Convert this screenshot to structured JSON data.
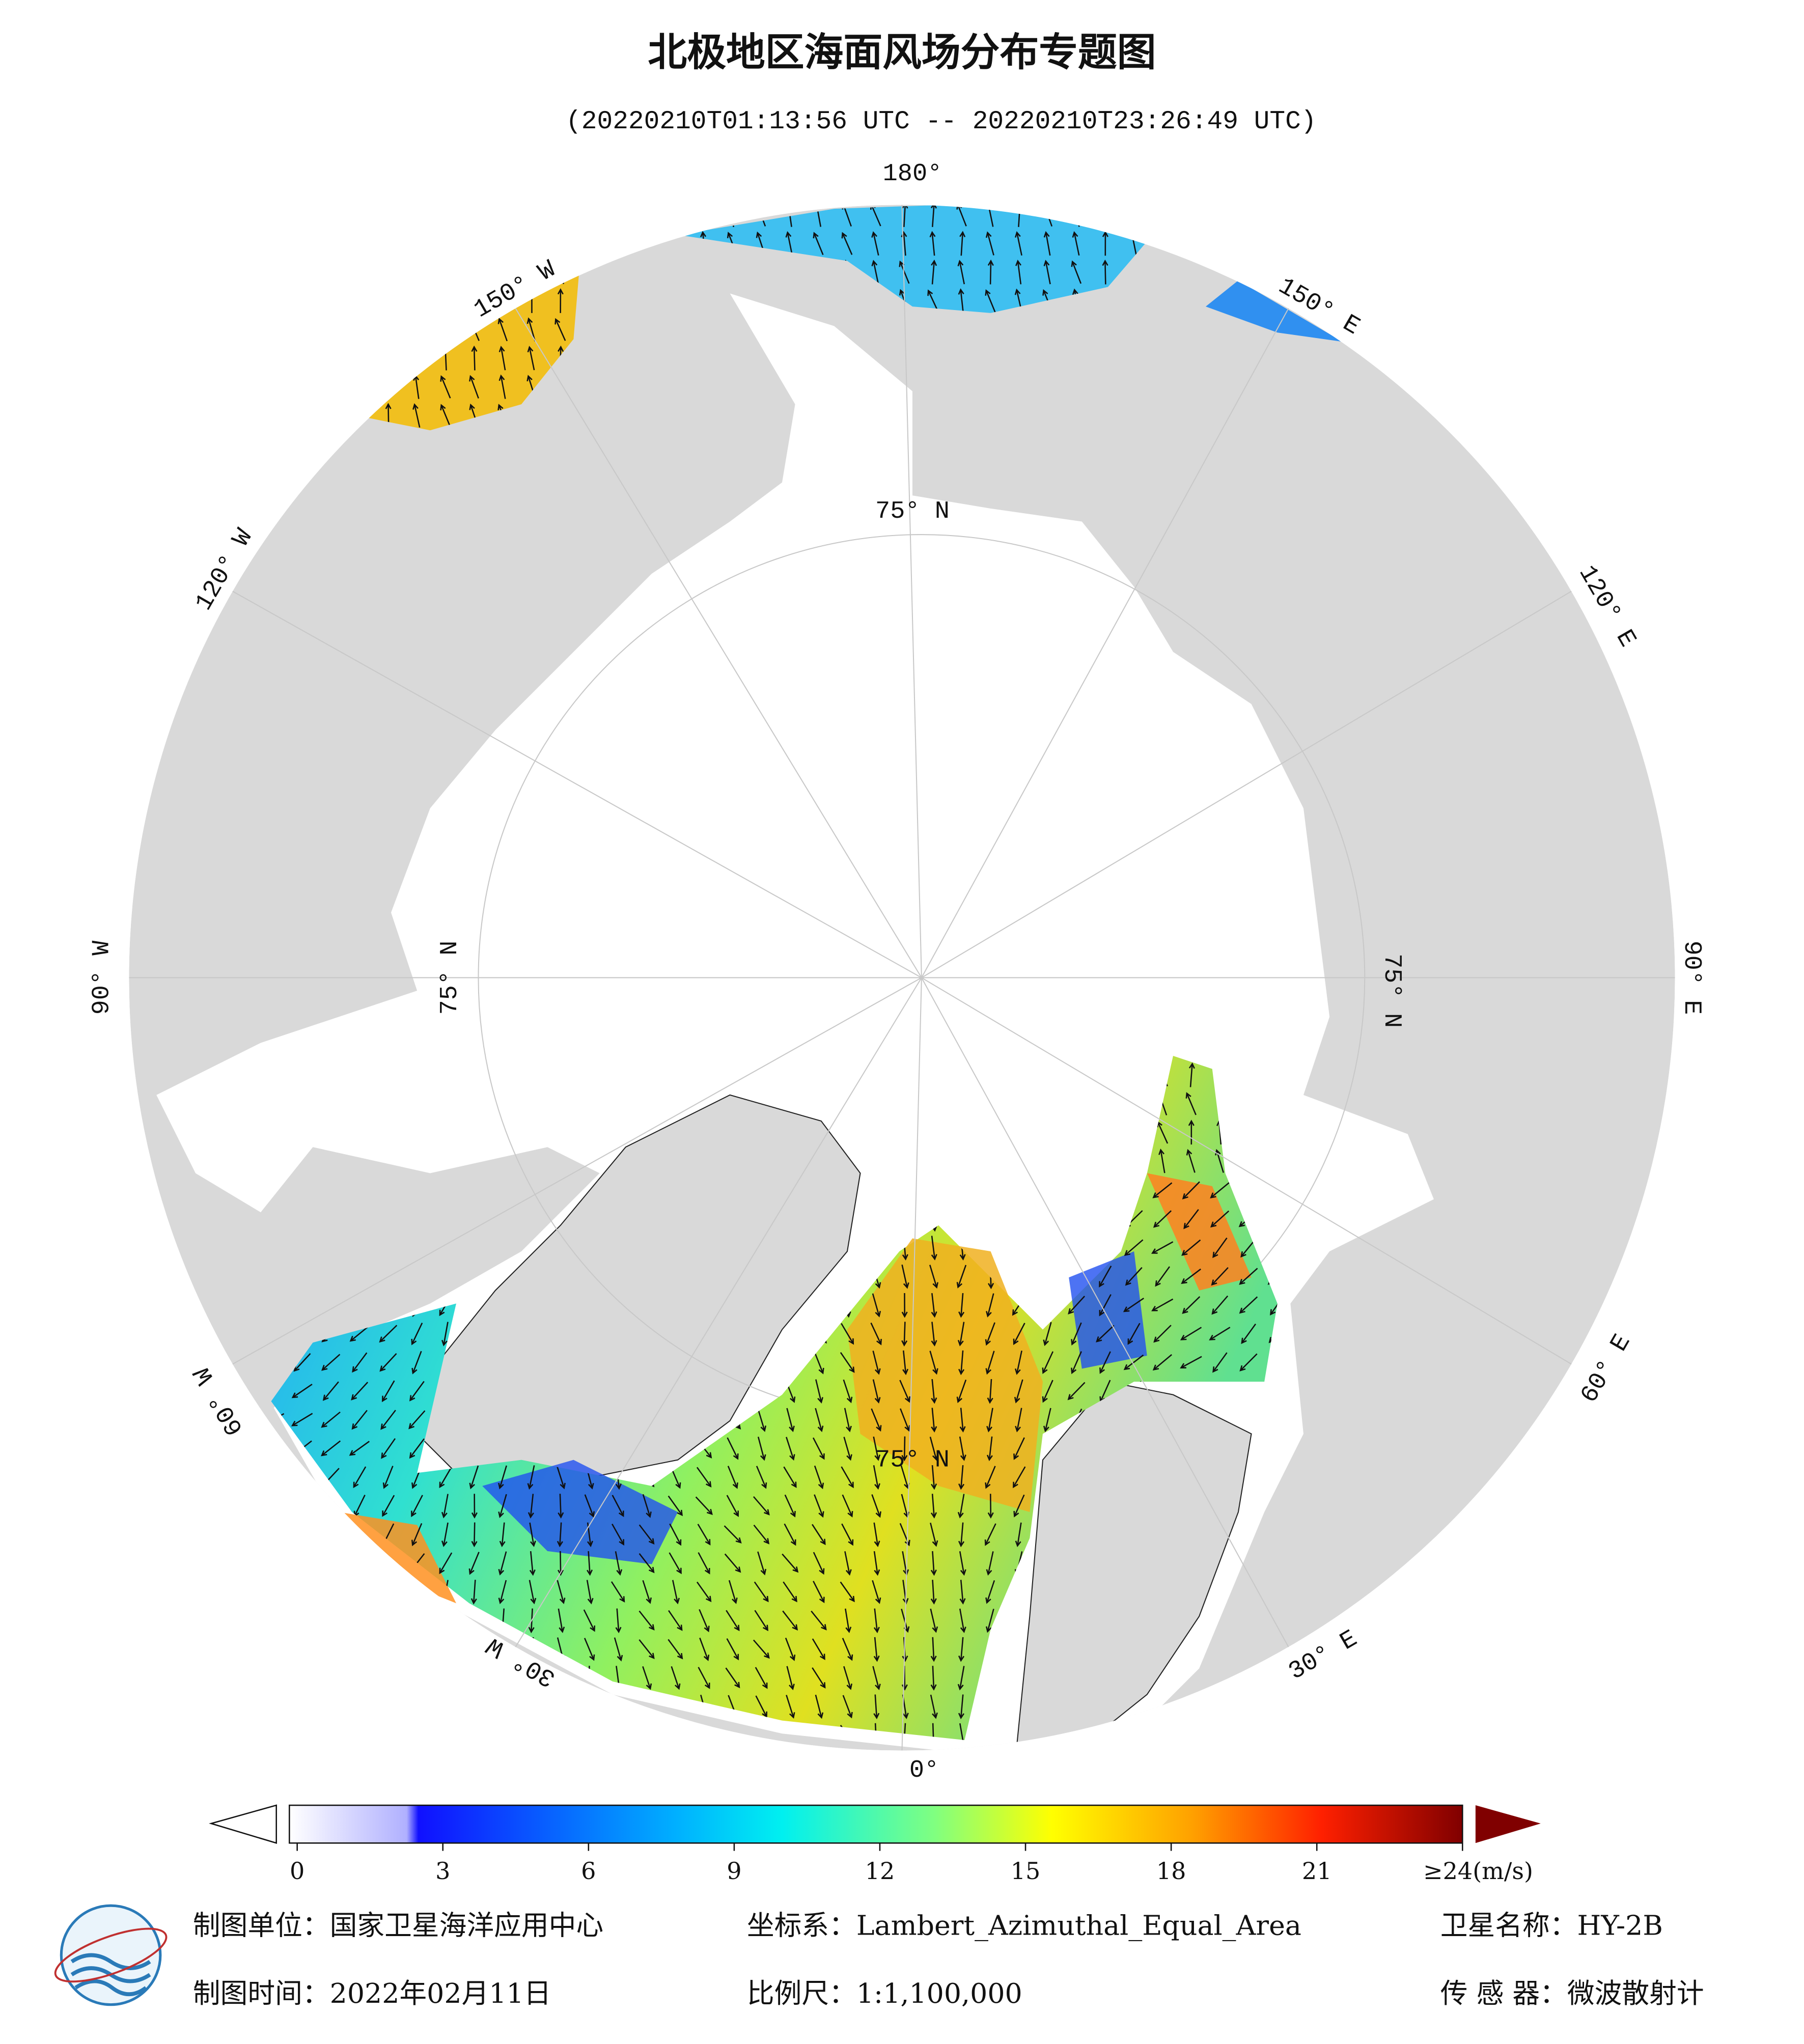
{
  "header": {
    "title": "北极地区海面风场分布专题图",
    "subtitle": "(20220210T01:13:56 UTC -- 20220210T23:26:49 UTC)"
  },
  "map": {
    "longitude_labels": [
      "180°",
      "150° W",
      "120° W",
      "90° W",
      "60° W",
      "30° W",
      "0°",
      "30° E",
      "60° E",
      "90° E",
      "120° E",
      "150° E"
    ],
    "latitude_labels": [
      "75° N",
      "75° N",
      "75° N",
      "75° N"
    ]
  },
  "colorbar": {
    "range": [
      0,
      24
    ],
    "ticks": [
      0,
      3,
      6,
      9,
      12,
      15,
      18,
      21,
      {
        "value": 24,
        "label": "≥24(m/s)"
      }
    ]
  },
  "footer": {
    "unit": "制图单位：国家卫星海洋应用中心",
    "projection": "坐标系：Lambert_Azimuthal_Equal_Area",
    "satellite": "卫星名称：HY-2B",
    "date": "制图时间：2022年02月11日",
    "scale": "比例尺：1:1,100,000",
    "sensor": "传 感 器：微波散射计"
  }
}
